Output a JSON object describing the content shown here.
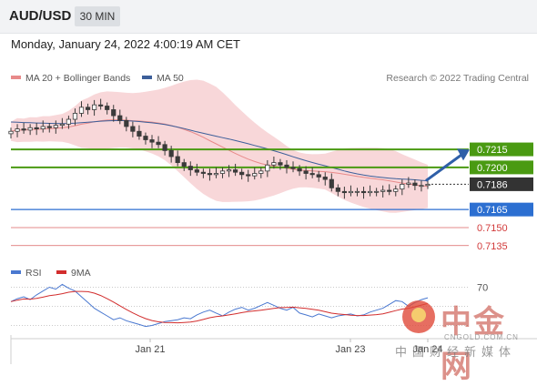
{
  "header": {
    "symbol": "AUD/USD",
    "timeframe": "30 MIN"
  },
  "datetime": "Monday, January 24, 2022 4:00:19 AM CET",
  "legend": {
    "bb": {
      "label": "MA 20 + Bollinger Bands",
      "color": "#e88a8a"
    },
    "ma50": {
      "label": "MA 50",
      "color": "#3d5f9a"
    }
  },
  "credit": "Research © 2022 Trading Central",
  "price_levels": [
    {
      "value": "0.7215",
      "kind": "target",
      "color": "#4a9a12"
    },
    {
      "value": "0.7200",
      "kind": "target",
      "color": "#4a9a12"
    },
    {
      "value": "0.7186",
      "kind": "last",
      "color": "#333333"
    },
    {
      "value": "0.7165",
      "kind": "pivot",
      "color": "#2c6fd1"
    },
    {
      "value": "0.7150",
      "kind": "support",
      "color": "#d23b3b"
    },
    {
      "value": "0.7135",
      "kind": "support",
      "color": "#d23b3b"
    }
  ],
  "rsi": {
    "legend_rsi": {
      "label": "RSI",
      "color": "#4a78d0"
    },
    "legend_ma": {
      "label": "9MA",
      "color": "#d22d2d"
    },
    "level": "70"
  },
  "x_ticks": [
    "Jan 21",
    "Jan 23",
    "Jan 24"
  ],
  "watermark": {
    "title": "中金网",
    "url": "CNGOLD.COM.CN",
    "sub": "中国财经新媒体"
  },
  "chart_data": {
    "type": "candlestick",
    "price_ylim": [
      0.7125,
      0.7265
    ],
    "closes": [
      0.723,
      0.7232,
      0.7231,
      0.7233,
      0.7232,
      0.7234,
      0.7233,
      0.7235,
      0.7236,
      0.724,
      0.7245,
      0.725,
      0.7248,
      0.7252,
      0.7251,
      0.7248,
      0.7243,
      0.7239,
      0.7234,
      0.723,
      0.7226,
      0.7223,
      0.7221,
      0.7219,
      0.7214,
      0.7209,
      0.7204,
      0.7201,
      0.7198,
      0.7196,
      0.7195,
      0.7194,
      0.7195,
      0.7197,
      0.7198,
      0.7196,
      0.7194,
      0.7193,
      0.7195,
      0.7197,
      0.7202,
      0.7204,
      0.7202,
      0.72,
      0.7199,
      0.7197,
      0.7195,
      0.7194,
      0.7192,
      0.719,
      0.7183,
      0.718,
      0.7179,
      0.718,
      0.718,
      0.7179,
      0.718,
      0.718,
      0.7181,
      0.718,
      0.7182,
      0.7186,
      0.7187,
      0.7185,
      0.7185,
      0.7186
    ],
    "rsi_values": [
      55,
      58,
      60,
      57,
      62,
      66,
      70,
      68,
      73,
      69,
      66,
      60,
      54,
      48,
      44,
      40,
      36,
      38,
      35,
      33,
      31,
      29,
      30,
      32,
      34,
      35,
      36,
      38,
      37,
      41,
      44,
      46,
      43,
      40,
      44,
      47,
      49,
      46,
      48,
      51,
      54,
      51,
      48,
      46,
      49,
      43,
      41,
      39,
      42,
      40,
      38,
      40,
      41,
      42,
      40,
      41,
      44,
      46,
      48,
      52,
      56,
      55,
      50,
      54,
      57,
      59
    ],
    "rsi_level": 70
  }
}
